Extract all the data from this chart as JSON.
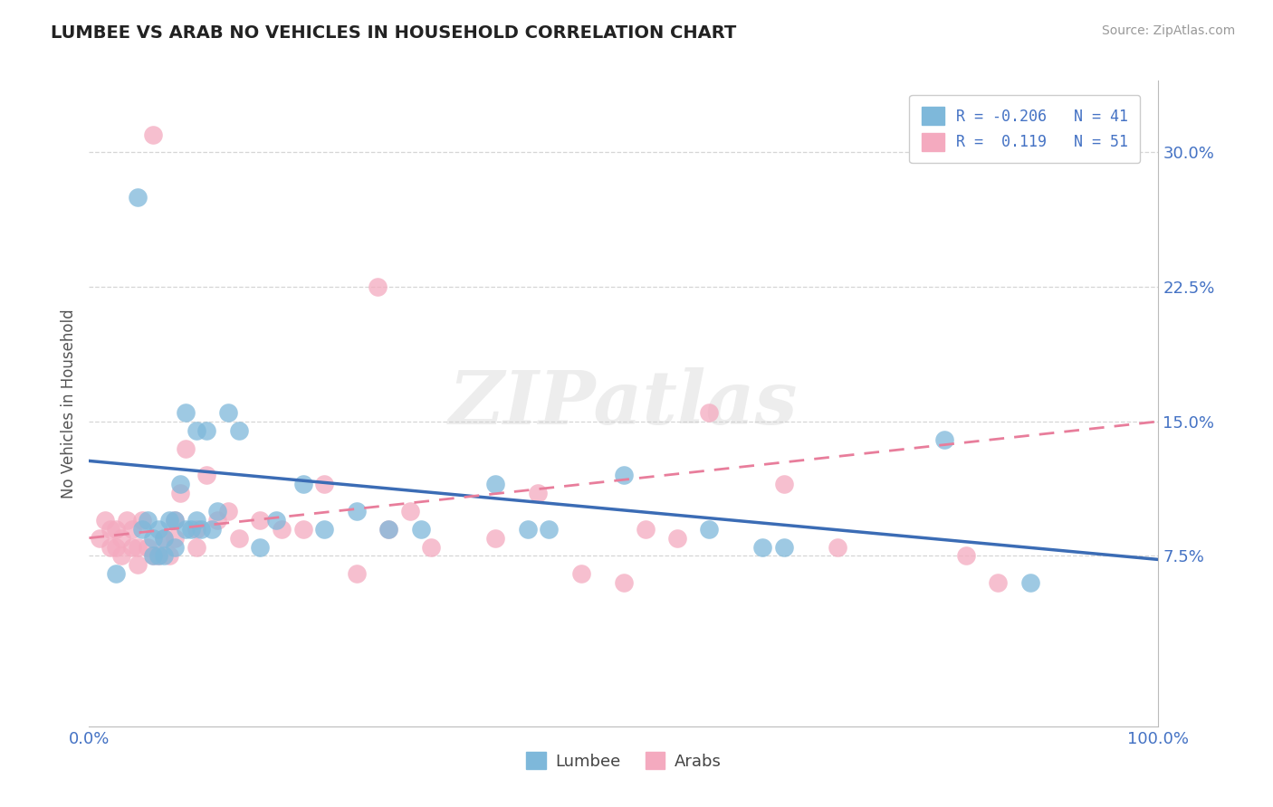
{
  "title": "LUMBEE VS ARAB NO VEHICLES IN HOUSEHOLD CORRELATION CHART",
  "source": "Source: ZipAtlas.com",
  "ylabel": "No Vehicles in Household",
  "watermark": "ZIPatlas",
  "xlim": [
    0.0,
    1.0
  ],
  "ylim": [
    -0.02,
    0.34
  ],
  "yticks": [
    0.075,
    0.15,
    0.225,
    0.3
  ],
  "ytick_labels": [
    "7.5%",
    "15.0%",
    "22.5%",
    "30.0%"
  ],
  "xticks": [
    0.0,
    0.125,
    0.25,
    0.375,
    0.5,
    0.625,
    0.75,
    0.875,
    1.0
  ],
  "xtick_labels": [
    "0.0%",
    "",
    "",
    "",
    "",
    "",
    "",
    "",
    "100.0%"
  ],
  "lumbee_color": "#7EB8DA",
  "arab_color": "#F4AABF",
  "lumbee_line_color": "#3B6CB5",
  "arab_line_color": "#E87D9B",
  "lumbee_R": -0.206,
  "lumbee_N": 41,
  "arab_R": 0.119,
  "arab_N": 51,
  "lumbee_intercept": 0.128,
  "lumbee_slope": -0.055,
  "arab_intercept": 0.085,
  "arab_slope": 0.065,
  "lumbee_x": [
    0.025,
    0.045,
    0.05,
    0.055,
    0.06,
    0.06,
    0.065,
    0.065,
    0.07,
    0.07,
    0.075,
    0.08,
    0.08,
    0.085,
    0.09,
    0.09,
    0.095,
    0.1,
    0.1,
    0.105,
    0.11,
    0.115,
    0.12,
    0.13,
    0.14,
    0.16,
    0.175,
    0.2,
    0.22,
    0.25,
    0.28,
    0.31,
    0.38,
    0.41,
    0.43,
    0.5,
    0.58,
    0.63,
    0.65,
    0.8,
    0.88
  ],
  "lumbee_y": [
    0.065,
    0.275,
    0.09,
    0.095,
    0.075,
    0.085,
    0.075,
    0.09,
    0.075,
    0.085,
    0.095,
    0.08,
    0.095,
    0.115,
    0.09,
    0.155,
    0.09,
    0.095,
    0.145,
    0.09,
    0.145,
    0.09,
    0.1,
    0.155,
    0.145,
    0.08,
    0.095,
    0.115,
    0.09,
    0.1,
    0.09,
    0.09,
    0.115,
    0.09,
    0.09,
    0.12,
    0.09,
    0.08,
    0.08,
    0.14,
    0.06
  ],
  "arab_x": [
    0.01,
    0.015,
    0.02,
    0.02,
    0.025,
    0.025,
    0.03,
    0.03,
    0.035,
    0.04,
    0.04,
    0.045,
    0.045,
    0.05,
    0.055,
    0.06,
    0.06,
    0.065,
    0.07,
    0.075,
    0.08,
    0.08,
    0.085,
    0.09,
    0.1,
    0.1,
    0.11,
    0.12,
    0.13,
    0.14,
    0.16,
    0.18,
    0.2,
    0.22,
    0.25,
    0.27,
    0.28,
    0.3,
    0.32,
    0.38,
    0.42,
    0.46,
    0.5,
    0.52,
    0.55,
    0.58,
    0.65,
    0.7,
    0.82,
    0.85,
    0.88
  ],
  "arab_y": [
    0.085,
    0.095,
    0.08,
    0.09,
    0.08,
    0.09,
    0.075,
    0.085,
    0.095,
    0.08,
    0.09,
    0.07,
    0.08,
    0.095,
    0.08,
    0.075,
    0.31,
    0.075,
    0.085,
    0.075,
    0.085,
    0.095,
    0.11,
    0.135,
    0.08,
    0.09,
    0.12,
    0.095,
    0.1,
    0.085,
    0.095,
    0.09,
    0.09,
    0.115,
    0.065,
    0.225,
    0.09,
    0.1,
    0.08,
    0.085,
    0.11,
    0.065,
    0.06,
    0.09,
    0.085,
    0.155,
    0.115,
    0.08,
    0.075,
    0.06,
    0.3
  ],
  "background_color": "#ffffff",
  "grid_color": "#cccccc",
  "title_color": "#222222",
  "axis_label_color": "#555555",
  "tick_label_color": "#4472c4",
  "source_color": "#999999",
  "legend_text_color": "#4472c4"
}
